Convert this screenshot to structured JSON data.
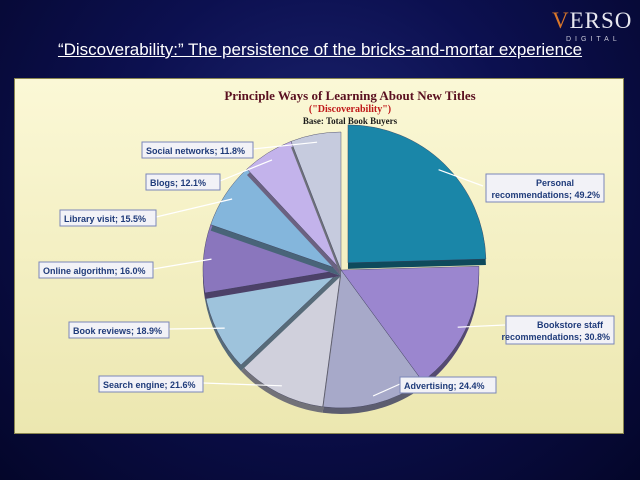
{
  "slide": {
    "title": "“Discoverability:” The persistence of the bricks-and-mortar experience"
  },
  "logo": {
    "word_v": "V",
    "word_rest": "ERSO",
    "sub": "DIGITAL"
  },
  "chart_data": {
    "type": "pie",
    "title": "Principle Ways of Learning About New Titles",
    "subtitle": "(\"Discoverability\")",
    "base": "Base:  Total Book Buyers",
    "slices": [
      {
        "label": "Personal recommendations",
        "value": 49.2,
        "display": [
          "Personal",
          "recommendations; 49.2%"
        ],
        "color": "#1a86a8",
        "exploded": true
      },
      {
        "label": "Bookstore staff recommendations",
        "value": 30.8,
        "display": [
          "Bookstore staff",
          "recommendations; 30.8%"
        ],
        "color": "#9b86cf",
        "exploded": false
      },
      {
        "label": "Advertising",
        "value": 24.4,
        "display": [
          "Advertising; 24.4%"
        ],
        "color": "#a7a9c9",
        "exploded": false
      },
      {
        "label": "Search engine",
        "value": 21.6,
        "display": [
          "Search engine; 21.6%"
        ],
        "color": "#d0d0dc",
        "exploded": false
      },
      {
        "label": "Book reviews",
        "value": 18.9,
        "display": [
          "Book reviews; 18.9%"
        ],
        "color": "#9ec3dc",
        "exploded": false
      },
      {
        "label": "Online algorithm",
        "value": 16.0,
        "display": [
          "Online algorithm; 16.0%"
        ],
        "color": "#8a76bd",
        "exploded": false
      },
      {
        "label": "Library visit",
        "value": 15.5,
        "display": [
          "Library visit; 15.5%"
        ],
        "color": "#84b6dc",
        "exploded": false
      },
      {
        "label": "Blogs",
        "value": 12.1,
        "display": [
          "Blogs; 12.1%"
        ],
        "color": "#c3b3eb",
        "exploded": false
      },
      {
        "label": "Social networks",
        "value": 11.8,
        "display": [
          "Social networks; 11.8%"
        ],
        "color": "#c6cbde",
        "exploded": false
      }
    ]
  }
}
